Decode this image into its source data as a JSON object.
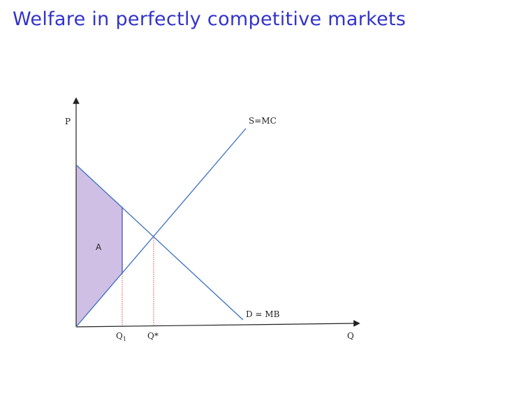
{
  "slide": {
    "title": "Welfare in perfectly competitive markets"
  },
  "diagram": {
    "y_axis_label": "P",
    "x_axis_label": "Q",
    "supply_label": "S=MC",
    "demand_label": "D = MB",
    "area_label": "A",
    "q1_label_main": "Q",
    "q1_label_sub": "1",
    "qstar_label": "Q*",
    "colors": {
      "axis": "#222222",
      "curves": "#3a6fc0",
      "shaded_area": "#d0bfe4",
      "shaded_edge": "#3a4aa8",
      "guide_lines": "#e03030",
      "title": "#3333cc"
    }
  }
}
